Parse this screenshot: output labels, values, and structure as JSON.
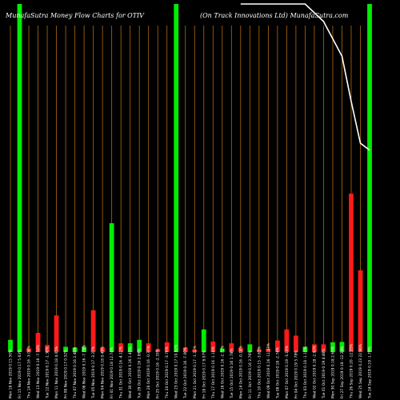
{
  "header": {
    "left_title": "MunafaSutra  Money Flow  Charts for OTIV",
    "right_title": "(On  Track  Innovations Ltd) MunafaSutra.com"
  },
  "colors": {
    "background": "#000000",
    "up": "#00ee00",
    "down": "#ff1a1a",
    "grid": "#b06a10",
    "line": "#ffffff",
    "text": "#ffffff"
  },
  "chart_data": {
    "type": "bar",
    "grid": true,
    "ylim": [
      0,
      100
    ],
    "categories": [
      "Mon 18 Nov 2019 0.15 50%",
      "Fri 15 Nov 2019 0.17 5.63%",
      "Thu 14 Nov 2019 0.16 -3.04%",
      "Wed 13 Nov 2019 0.16 -7.58%",
      "Tue 12 Nov 2019 0.17 -1.36%",
      "Mon 11 Nov 2019 0.18 4.05%",
      "Fri 08 Nov 2019 0.17 0.52%",
      "Thu 07 Nov 2019 0.16 2.48%",
      "Wed 06 Nov 2019 0.16 -7.79%",
      "Tue 05 Nov 2019 0.17 -3.27%",
      "Mon 04 Nov 2019 0.18 0.49%",
      "Fri 01 Nov 2019 0.18 12.74%",
      "Thu 31 Oct 2019 0.16 -4.12%",
      "Wed 30 Oct 2019 0.16 1.40%",
      "Tue 29 Oct 2019 0.16 2.89%",
      "Mon 28 Oct 2019 0.16 -0.37%",
      "Fri 25 Oct 2019 0.16 -2.33%",
      "Thu 24 Oct 2019 0.17 -3.76%",
      "Wed 23 Oct 2019 0.17 10.81%",
      "Tue 22 Oct 2019 0.16 -7.00%",
      "Mon 21 Oct 2019 0.17 -1.31%",
      "Fri 18 Oct 2019 0.17 8.07%",
      "Thu 17 Oct 2019 0.16 -1.18%",
      "Wed 16 Oct 2019 0.16 -2.72%",
      "Tue 15 Oct 2019 0.16 1.78%",
      "Mon 14 Oct 2019 0.16 -0.18%",
      "Fri 11 Oct 2019 0.16 2.76%",
      "Thu 10 Oct 2019 0.15 -3.63%",
      "Wed 09 Oct 2019 0.16 -11.43%",
      "Tue 08 Oct 2019 0.18 -2.74%",
      "Mon 07 Oct 2019 0.19 -3.10%",
      "Fri 04 Oct 2019 0.19 5.78%",
      "Thu 03 Oct 2019 0.18 -1.10%",
      "Wed 02 Oct 2019 0.18 -2.80%",
      "Tue 01 Oct 2019 0.19 4.46%",
      "Mon 30 Sep 2019 0.18 2.65%",
      "Fri 27 Sep 2019 0.18 -12.24%",
      "Thu 26 Sep 2019 0.20 -12.35%",
      "Wed 25 Sep 2019 0.23 22.96%",
      "Tue 24 Sep 2019 0.19 -1.79%"
    ],
    "values": [
      3.5,
      100,
      1,
      5.5,
      2.0,
      10.5,
      1.5,
      1.3,
      1.5,
      12,
      1.3,
      37,
      2.5,
      2.5,
      3.5,
      2.5,
      0.8,
      2.8,
      100,
      1.3,
      0.7,
      6.5,
      3.0,
      1.0,
      2.5,
      1.2,
      2.2,
      0.8,
      0.9,
      3.3,
      6.5,
      4.7,
      1.5,
      2.2,
      2.2,
      2.8,
      2.9,
      45.5,
      23.5,
      100
    ],
    "directions": [
      "up",
      "up",
      "down",
      "down",
      "down",
      "down",
      "up",
      "up",
      "up",
      "down",
      "down",
      "up",
      "down",
      "up",
      "up",
      "down",
      "down",
      "down",
      "up",
      "down",
      "down",
      "up",
      "down",
      "up",
      "down",
      "down",
      "up",
      "down",
      "down",
      "down",
      "down",
      "down",
      "up",
      "down",
      "down",
      "up",
      "up",
      "down",
      "down",
      "up"
    ],
    "line": {
      "x": [
        26,
        33,
        35,
        37,
        38,
        39,
        40
      ],
      "y": [
        100,
        100,
        95,
        85,
        72,
        60,
        58
      ]
    }
  }
}
